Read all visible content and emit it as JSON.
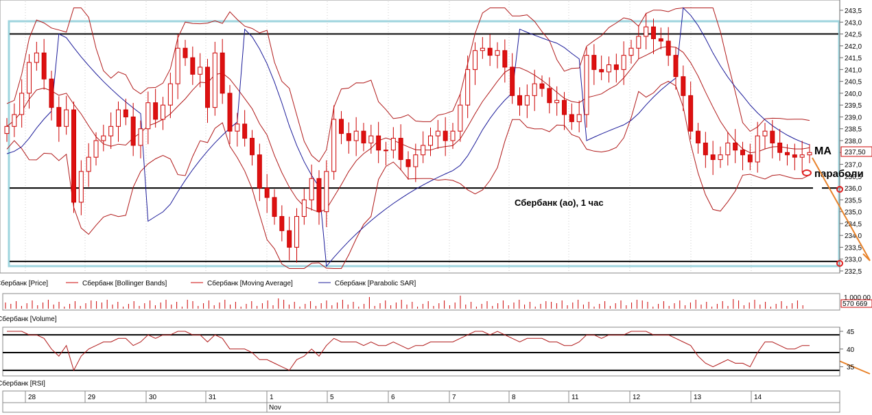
{
  "chart_data": [
    {
      "type": "candlestick",
      "title": "Сбербанк (ао),  1 час",
      "y_ticks": [
        "243,5",
        "243,0",
        "242,5",
        "242,0",
        "241,5",
        "241,0",
        "240,5",
        "240,0",
        "239,5",
        "239,0",
        "238,5",
        "238,0",
        "237,5",
        "237,0",
        "236,5",
        "236,0",
        "235,5",
        "235,0",
        "234,5",
        "234,0",
        "233,5",
        "233,0",
        "232,5"
      ],
      "ylim": [
        232.5,
        243.7
      ],
      "last_price_label": "237,50",
      "horizontal_levels": [
        242.5,
        236.0,
        232.9
      ],
      "annotations": {
        "ma": "MA",
        "parabolic": "параболи"
      },
      "legend": [
        {
          "label": "Сбербанк [Price]",
          "color": "#cc0000"
        },
        {
          "label": "Сбербанк [Bollinger Bands]",
          "color": "#cc0000"
        },
        {
          "label": "Сбербанк [Moving Average]",
          "color": "#cc0000"
        },
        {
          "label": "Сбербанк [Parabolic SAR]",
          "color": "#1a1a99"
        }
      ],
      "close_series": [
        238.6,
        239.1,
        240.0,
        241.3,
        241.7,
        240.6,
        239.4,
        238.6,
        239.3,
        235.4,
        236.7,
        237.3,
        238.0,
        238.2,
        238.6,
        239.3,
        239.0,
        237.8,
        238.5,
        239.6,
        238.9,
        239.5,
        240.4,
        241.9,
        241.5,
        240.8,
        241.1,
        239.4,
        241.7,
        240.0,
        238.4,
        238.7,
        238.1,
        237.4,
        236.0,
        235.6,
        234.8,
        234.2,
        233.5,
        234.8,
        235.5,
        236.4,
        235.0,
        236.7,
        238.9,
        238.3,
        238.0,
        238.4,
        237.9,
        238.2,
        237.6,
        237.6,
        238.1,
        237.2,
        236.9,
        237.4,
        237.8,
        238.2,
        238.4,
        238.0,
        238.4,
        239.5,
        241.0,
        241.8,
        241.9,
        241.6,
        241.8,
        241.1,
        239.9,
        239.5,
        239.9,
        240.4,
        240.2,
        239.6,
        239.7,
        239.1,
        238.8,
        239.1,
        241.6,
        241.0,
        240.9,
        241.2,
        241.0,
        241.6,
        241.9,
        242.4,
        242.8,
        242.3,
        242.2,
        241.6,
        240.7,
        239.9,
        238.4,
        237.9,
        237.4,
        237.2,
        237.4,
        237.9,
        237.6,
        237.4,
        237.1,
        238.2,
        238.4,
        237.9,
        237.5,
        237.4,
        237.3,
        237.4,
        237.5
      ],
      "rsi": {
        "label": "Сбербанк [RSI]",
        "y_ticks": [
          "45",
          "40",
          "35"
        ],
        "levels": [
          44,
          39,
          34
        ],
        "values": [
          45,
          46,
          45,
          44,
          44,
          43,
          40,
          38,
          41,
          34,
          38,
          40,
          41,
          42,
          42,
          43,
          43,
          41,
          42,
          44,
          43,
          44,
          44,
          45,
          45,
          44,
          44,
          42,
          44,
          43,
          40,
          40,
          40,
          39,
          37,
          37,
          36,
          35,
          34,
          37,
          38,
          40,
          38,
          41,
          43,
          42,
          42,
          42,
          41,
          42,
          41,
          41,
          42,
          41,
          40,
          41,
          41,
          42,
          42,
          42,
          42,
          43,
          44,
          45,
          45,
          44,
          45,
          44,
          43,
          42,
          43,
          43,
          43,
          42,
          42,
          41,
          41,
          42,
          44,
          44,
          43,
          44,
          44,
          44,
          45,
          45,
          45,
          44,
          44,
          44,
          43,
          42,
          41,
          38,
          36,
          35,
          36,
          37,
          36,
          36,
          35,
          39,
          42,
          42,
          41,
          40,
          40,
          41,
          41
        ]
      },
      "volume": {
        "label": "Сбербанк [Volume]",
        "last_label": "570 669",
        "top_label": "1 000 00"
      },
      "x_axis": {
        "days": [
          "28",
          "29",
          "30",
          "31",
          "1",
          "5",
          "6",
          "7",
          "8",
          "11",
          "12",
          "13",
          "14"
        ],
        "month": "Nov"
      }
    }
  ]
}
